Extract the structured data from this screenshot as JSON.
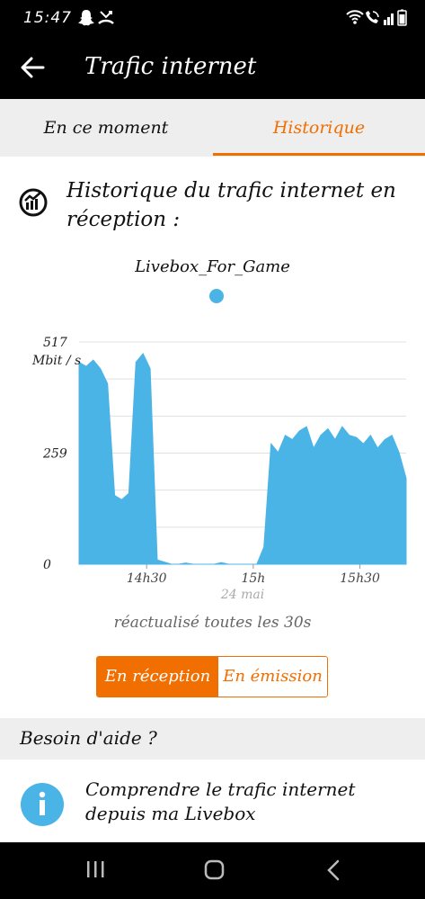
{
  "status_bar": {
    "time": "15:47",
    "left_icons": [
      "snapchat-icon",
      "missed-call-icon"
    ],
    "right_icons": [
      "wifi-icon",
      "wifi-calling-icon",
      "signal-icon",
      "battery-icon"
    ]
  },
  "app_bar": {
    "title": "Trafic internet"
  },
  "tabs": [
    {
      "label": "En ce moment",
      "active": false
    },
    {
      "label": "Historique",
      "active": true
    }
  ],
  "section": {
    "title": "Historique du trafic internet en réception :"
  },
  "legend": {
    "series_name": "Livebox_For_Game",
    "series_color": "#4bb4e6"
  },
  "chart_data": {
    "type": "area",
    "title": "",
    "ylabel": "Mbit / s",
    "y_ticks": [
      "517",
      "259",
      "0"
    ],
    "ylim": [
      0,
      517
    ],
    "x_ticks": [
      "14h30",
      "15h",
      "15h30"
    ],
    "x_caption": "24 mai",
    "grid": true,
    "series": [
      {
        "name": "Livebox_For_Game",
        "color": "#4bb4e6",
        "x": [
          "14h11",
          "14h13",
          "14h15",
          "14h17",
          "14h19",
          "14h21",
          "14h23",
          "14h25",
          "14h27",
          "14h29",
          "14h31",
          "14h33",
          "14h35",
          "14h37",
          "14h39",
          "14h41",
          "14h43",
          "14h45",
          "14h47",
          "14h49",
          "14h51",
          "14h53",
          "14h55",
          "14h57",
          "14h59",
          "15h01",
          "15h03",
          "15h05",
          "15h07",
          "15h09",
          "15h11",
          "15h13",
          "15h15",
          "15h17",
          "15h19",
          "15h21",
          "15h23",
          "15h25",
          "15h27",
          "15h29",
          "15h31",
          "15h33",
          "15h35",
          "15h37",
          "15h39",
          "15h41",
          "15h43"
        ],
        "values": [
          470,
          460,
          475,
          455,
          420,
          160,
          150,
          165,
          470,
          490,
          455,
          10,
          5,
          0,
          0,
          3,
          0,
          0,
          0,
          0,
          4,
          0,
          0,
          0,
          0,
          0,
          40,
          280,
          260,
          300,
          290,
          310,
          320,
          270,
          300,
          315,
          290,
          320,
          300,
          295,
          280,
          300,
          270,
          290,
          300,
          260,
          200
        ]
      }
    ]
  },
  "refresh_note": "réactualisé toutes les 30s",
  "toggle": {
    "reception_label": "En réception",
    "emission_label": "En émission",
    "selected": "reception"
  },
  "help": {
    "header": "Besoin d'aide ?",
    "item_label": "Comprendre le trafic internet depuis ma Livebox",
    "item_icon": "info-icon"
  },
  "nav_bar": {
    "buttons": [
      "recent-apps-icon",
      "home-icon",
      "back-icon"
    ]
  }
}
